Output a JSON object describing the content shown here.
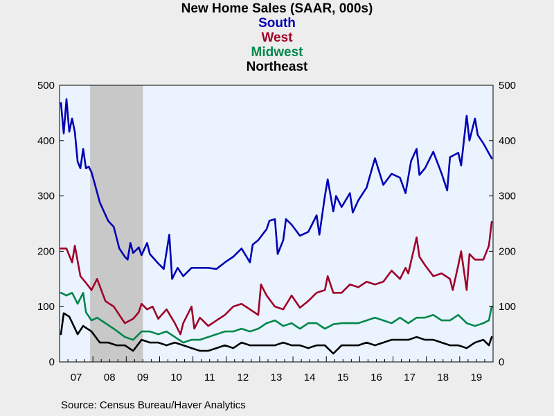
{
  "chart_data": {
    "type": "line",
    "title": "New Home Sales (SAAR, 000s)",
    "ylim": [
      0,
      500
    ],
    "y_ticks": [
      0,
      100,
      200,
      300,
      400,
      500
    ],
    "x_ticks": [
      "07",
      "08",
      "09",
      "10",
      "11",
      "12",
      "13",
      "14",
      "15",
      "16",
      "17",
      "18",
      "19"
    ],
    "x_start_year": 2007,
    "recession": {
      "start": "2007-12",
      "end": "2009-06"
    },
    "source": "Source:  Census Bureau/Haver Analytics",
    "colors": {
      "South": "#0000b4",
      "West": "#a00028",
      "Midwest": "#00874b",
      "Northeast": "#000000",
      "recession": "#c8c8c8",
      "plot_bg": "#eaf3fe"
    },
    "series": [
      {
        "name": "South",
        "anchors": [
          [
            "2007-01",
            468
          ],
          [
            "2007-02",
            413
          ],
          [
            "2007-03",
            475
          ],
          [
            "2007-04",
            416
          ],
          [
            "2007-05",
            440
          ],
          [
            "2007-06",
            415
          ],
          [
            "2007-07",
            362
          ],
          [
            "2007-08",
            350
          ],
          [
            "2007-09",
            385
          ],
          [
            "2007-10",
            350
          ],
          [
            "2007-11",
            353
          ],
          [
            "2007-12",
            343
          ],
          [
            "2008-03",
            288
          ],
          [
            "2008-06",
            255
          ],
          [
            "2008-08",
            244
          ],
          [
            "2008-10",
            205
          ],
          [
            "2008-12",
            190
          ],
          [
            "2009-01",
            185
          ],
          [
            "2009-02",
            215
          ],
          [
            "2009-03",
            197
          ],
          [
            "2009-05",
            207
          ],
          [
            "2009-06",
            193
          ],
          [
            "2009-08",
            215
          ],
          [
            "2009-09",
            195
          ],
          [
            "2009-12",
            178
          ],
          [
            "2010-02",
            168
          ],
          [
            "2010-04",
            230
          ],
          [
            "2010-05",
            150
          ],
          [
            "2010-07",
            170
          ],
          [
            "2010-09",
            155
          ],
          [
            "2010-12",
            170
          ],
          [
            "2011-06",
            170
          ],
          [
            "2011-09",
            168
          ],
          [
            "2011-12",
            180
          ],
          [
            "2012-03",
            190
          ],
          [
            "2012-06",
            205
          ],
          [
            "2012-09",
            180
          ],
          [
            "2012-10",
            212
          ],
          [
            "2012-12",
            220
          ],
          [
            "2013-03",
            240
          ],
          [
            "2013-04",
            255
          ],
          [
            "2013-06",
            258
          ],
          [
            "2013-07",
            195
          ],
          [
            "2013-09",
            220
          ],
          [
            "2013-10",
            258
          ],
          [
            "2013-12",
            248
          ],
          [
            "2014-03",
            228
          ],
          [
            "2014-06",
            235
          ],
          [
            "2014-09",
            265
          ],
          [
            "2014-10",
            230
          ],
          [
            "2014-12",
            300
          ],
          [
            "2015-01",
            330
          ],
          [
            "2015-03",
            272
          ],
          [
            "2015-04",
            300
          ],
          [
            "2015-06",
            280
          ],
          [
            "2015-09",
            305
          ],
          [
            "2015-10",
            270
          ],
          [
            "2015-12",
            292
          ],
          [
            "2016-03",
            315
          ],
          [
            "2016-06",
            368
          ],
          [
            "2016-09",
            320
          ],
          [
            "2016-12",
            340
          ],
          [
            "2017-03",
            333
          ],
          [
            "2017-05",
            305
          ],
          [
            "2017-07",
            363
          ],
          [
            "2017-09",
            385
          ],
          [
            "2017-10",
            338
          ],
          [
            "2017-12",
            350
          ],
          [
            "2018-03",
            380
          ],
          [
            "2018-06",
            340
          ],
          [
            "2018-08",
            310
          ],
          [
            "2018-09",
            370
          ],
          [
            "2018-12",
            378
          ],
          [
            "2019-01",
            355
          ],
          [
            "2019-03",
            445
          ],
          [
            "2019-04",
            400
          ],
          [
            "2019-06",
            440
          ],
          [
            "2019-07",
            410
          ],
          [
            "2019-09",
            395
          ],
          [
            "2019-12",
            368
          ]
        ]
      },
      {
        "name": "West",
        "anchors": [
          [
            "2007-01",
            205
          ],
          [
            "2007-03",
            205
          ],
          [
            "2007-05",
            180
          ],
          [
            "2007-06",
            210
          ],
          [
            "2007-08",
            155
          ],
          [
            "2007-10",
            143
          ],
          [
            "2007-12",
            130
          ],
          [
            "2008-02",
            150
          ],
          [
            "2008-05",
            110
          ],
          [
            "2008-08",
            100
          ],
          [
            "2008-10",
            85
          ],
          [
            "2008-12",
            70
          ],
          [
            "2009-03",
            78
          ],
          [
            "2009-05",
            90
          ],
          [
            "2009-06",
            105
          ],
          [
            "2009-08",
            95
          ],
          [
            "2009-10",
            100
          ],
          [
            "2009-12",
            78
          ],
          [
            "2010-03",
            95
          ],
          [
            "2010-06",
            70
          ],
          [
            "2010-08",
            50
          ],
          [
            "2010-09",
            70
          ],
          [
            "2010-12",
            100
          ],
          [
            "2011-01",
            60
          ],
          [
            "2011-03",
            80
          ],
          [
            "2011-06",
            65
          ],
          [
            "2011-12",
            85
          ],
          [
            "2012-03",
            100
          ],
          [
            "2012-06",
            105
          ],
          [
            "2012-09",
            95
          ],
          [
            "2012-12",
            85
          ],
          [
            "2013-01",
            140
          ],
          [
            "2013-03",
            120
          ],
          [
            "2013-06",
            100
          ],
          [
            "2013-09",
            95
          ],
          [
            "2013-12",
            120
          ],
          [
            "2014-03",
            98
          ],
          [
            "2014-06",
            110
          ],
          [
            "2014-09",
            125
          ],
          [
            "2014-12",
            130
          ],
          [
            "2015-01",
            155
          ],
          [
            "2015-03",
            125
          ],
          [
            "2015-06",
            125
          ],
          [
            "2015-09",
            140
          ],
          [
            "2015-12",
            135
          ],
          [
            "2016-03",
            145
          ],
          [
            "2016-06",
            140
          ],
          [
            "2016-09",
            145
          ],
          [
            "2016-12",
            165
          ],
          [
            "2017-03",
            150
          ],
          [
            "2017-05",
            170
          ],
          [
            "2017-06",
            160
          ],
          [
            "2017-09",
            225
          ],
          [
            "2017-10",
            190
          ],
          [
            "2017-12",
            175
          ],
          [
            "2018-03",
            155
          ],
          [
            "2018-06",
            160
          ],
          [
            "2018-09",
            150
          ],
          [
            "2018-10",
            130
          ],
          [
            "2018-12",
            175
          ],
          [
            "2019-01",
            200
          ],
          [
            "2019-03",
            130
          ],
          [
            "2019-04",
            195
          ],
          [
            "2019-06",
            185
          ],
          [
            "2019-09",
            185
          ],
          [
            "2019-11",
            210
          ],
          [
            "2019-12",
            253
          ]
        ]
      },
      {
        "name": "Midwest",
        "anchors": [
          [
            "2007-01",
            125
          ],
          [
            "2007-03",
            120
          ],
          [
            "2007-05",
            125
          ],
          [
            "2007-07",
            105
          ],
          [
            "2007-09",
            125
          ],
          [
            "2007-10",
            90
          ],
          [
            "2007-12",
            75
          ],
          [
            "2008-02",
            80
          ],
          [
            "2008-05",
            70
          ],
          [
            "2008-08",
            60
          ],
          [
            "2008-12",
            45
          ],
          [
            "2009-03",
            40
          ],
          [
            "2009-06",
            55
          ],
          [
            "2009-09",
            55
          ],
          [
            "2009-12",
            50
          ],
          [
            "2010-03",
            55
          ],
          [
            "2010-06",
            45
          ],
          [
            "2010-09",
            35
          ],
          [
            "2010-12",
            40
          ],
          [
            "2011-03",
            40
          ],
          [
            "2011-06",
            45
          ],
          [
            "2011-12",
            55
          ],
          [
            "2012-03",
            55
          ],
          [
            "2012-06",
            60
          ],
          [
            "2012-09",
            55
          ],
          [
            "2012-12",
            60
          ],
          [
            "2013-03",
            70
          ],
          [
            "2013-06",
            75
          ],
          [
            "2013-09",
            65
          ],
          [
            "2013-12",
            70
          ],
          [
            "2014-03",
            60
          ],
          [
            "2014-06",
            70
          ],
          [
            "2014-09",
            70
          ],
          [
            "2014-12",
            60
          ],
          [
            "2015-03",
            68
          ],
          [
            "2015-06",
            70
          ],
          [
            "2015-09",
            70
          ],
          [
            "2015-12",
            70
          ],
          [
            "2016-03",
            75
          ],
          [
            "2016-06",
            80
          ],
          [
            "2016-09",
            75
          ],
          [
            "2016-12",
            70
          ],
          [
            "2017-03",
            80
          ],
          [
            "2017-06",
            70
          ],
          [
            "2017-09",
            80
          ],
          [
            "2017-12",
            80
          ],
          [
            "2018-03",
            85
          ],
          [
            "2018-06",
            75
          ],
          [
            "2018-09",
            75
          ],
          [
            "2018-12",
            85
          ],
          [
            "2019-03",
            70
          ],
          [
            "2019-06",
            65
          ],
          [
            "2019-09",
            70
          ],
          [
            "2019-11",
            75
          ],
          [
            "2019-12",
            100
          ]
        ]
      },
      {
        "name": "Northeast",
        "anchors": [
          [
            "2007-01",
            50
          ],
          [
            "2007-02",
            88
          ],
          [
            "2007-04",
            82
          ],
          [
            "2007-07",
            50
          ],
          [
            "2007-09",
            65
          ],
          [
            "2007-12",
            55
          ],
          [
            "2008-03",
            35
          ],
          [
            "2008-06",
            35
          ],
          [
            "2008-09",
            30
          ],
          [
            "2008-12",
            30
          ],
          [
            "2009-03",
            20
          ],
          [
            "2009-06",
            40
          ],
          [
            "2009-09",
            35
          ],
          [
            "2009-12",
            35
          ],
          [
            "2010-03",
            30
          ],
          [
            "2010-06",
            35
          ],
          [
            "2010-09",
            30
          ],
          [
            "2010-12",
            25
          ],
          [
            "2011-03",
            20
          ],
          [
            "2011-06",
            20
          ],
          [
            "2011-12",
            30
          ],
          [
            "2012-03",
            25
          ],
          [
            "2012-06",
            35
          ],
          [
            "2012-09",
            30
          ],
          [
            "2012-12",
            30
          ],
          [
            "2013-03",
            30
          ],
          [
            "2013-06",
            30
          ],
          [
            "2013-09",
            35
          ],
          [
            "2013-12",
            30
          ],
          [
            "2014-03",
            30
          ],
          [
            "2014-06",
            25
          ],
          [
            "2014-09",
            30
          ],
          [
            "2014-12",
            30
          ],
          [
            "2015-03",
            15
          ],
          [
            "2015-06",
            30
          ],
          [
            "2015-09",
            30
          ],
          [
            "2015-12",
            30
          ],
          [
            "2016-03",
            35
          ],
          [
            "2016-06",
            30
          ],
          [
            "2016-09",
            35
          ],
          [
            "2016-12",
            40
          ],
          [
            "2017-03",
            40
          ],
          [
            "2017-06",
            40
          ],
          [
            "2017-09",
            45
          ],
          [
            "2017-12",
            40
          ],
          [
            "2018-03",
            40
          ],
          [
            "2018-06",
            35
          ],
          [
            "2018-09",
            30
          ],
          [
            "2018-12",
            30
          ],
          [
            "2019-03",
            25
          ],
          [
            "2019-06",
            35
          ],
          [
            "2019-09",
            40
          ],
          [
            "2019-11",
            30
          ],
          [
            "2019-12",
            45
          ]
        ]
      }
    ]
  }
}
